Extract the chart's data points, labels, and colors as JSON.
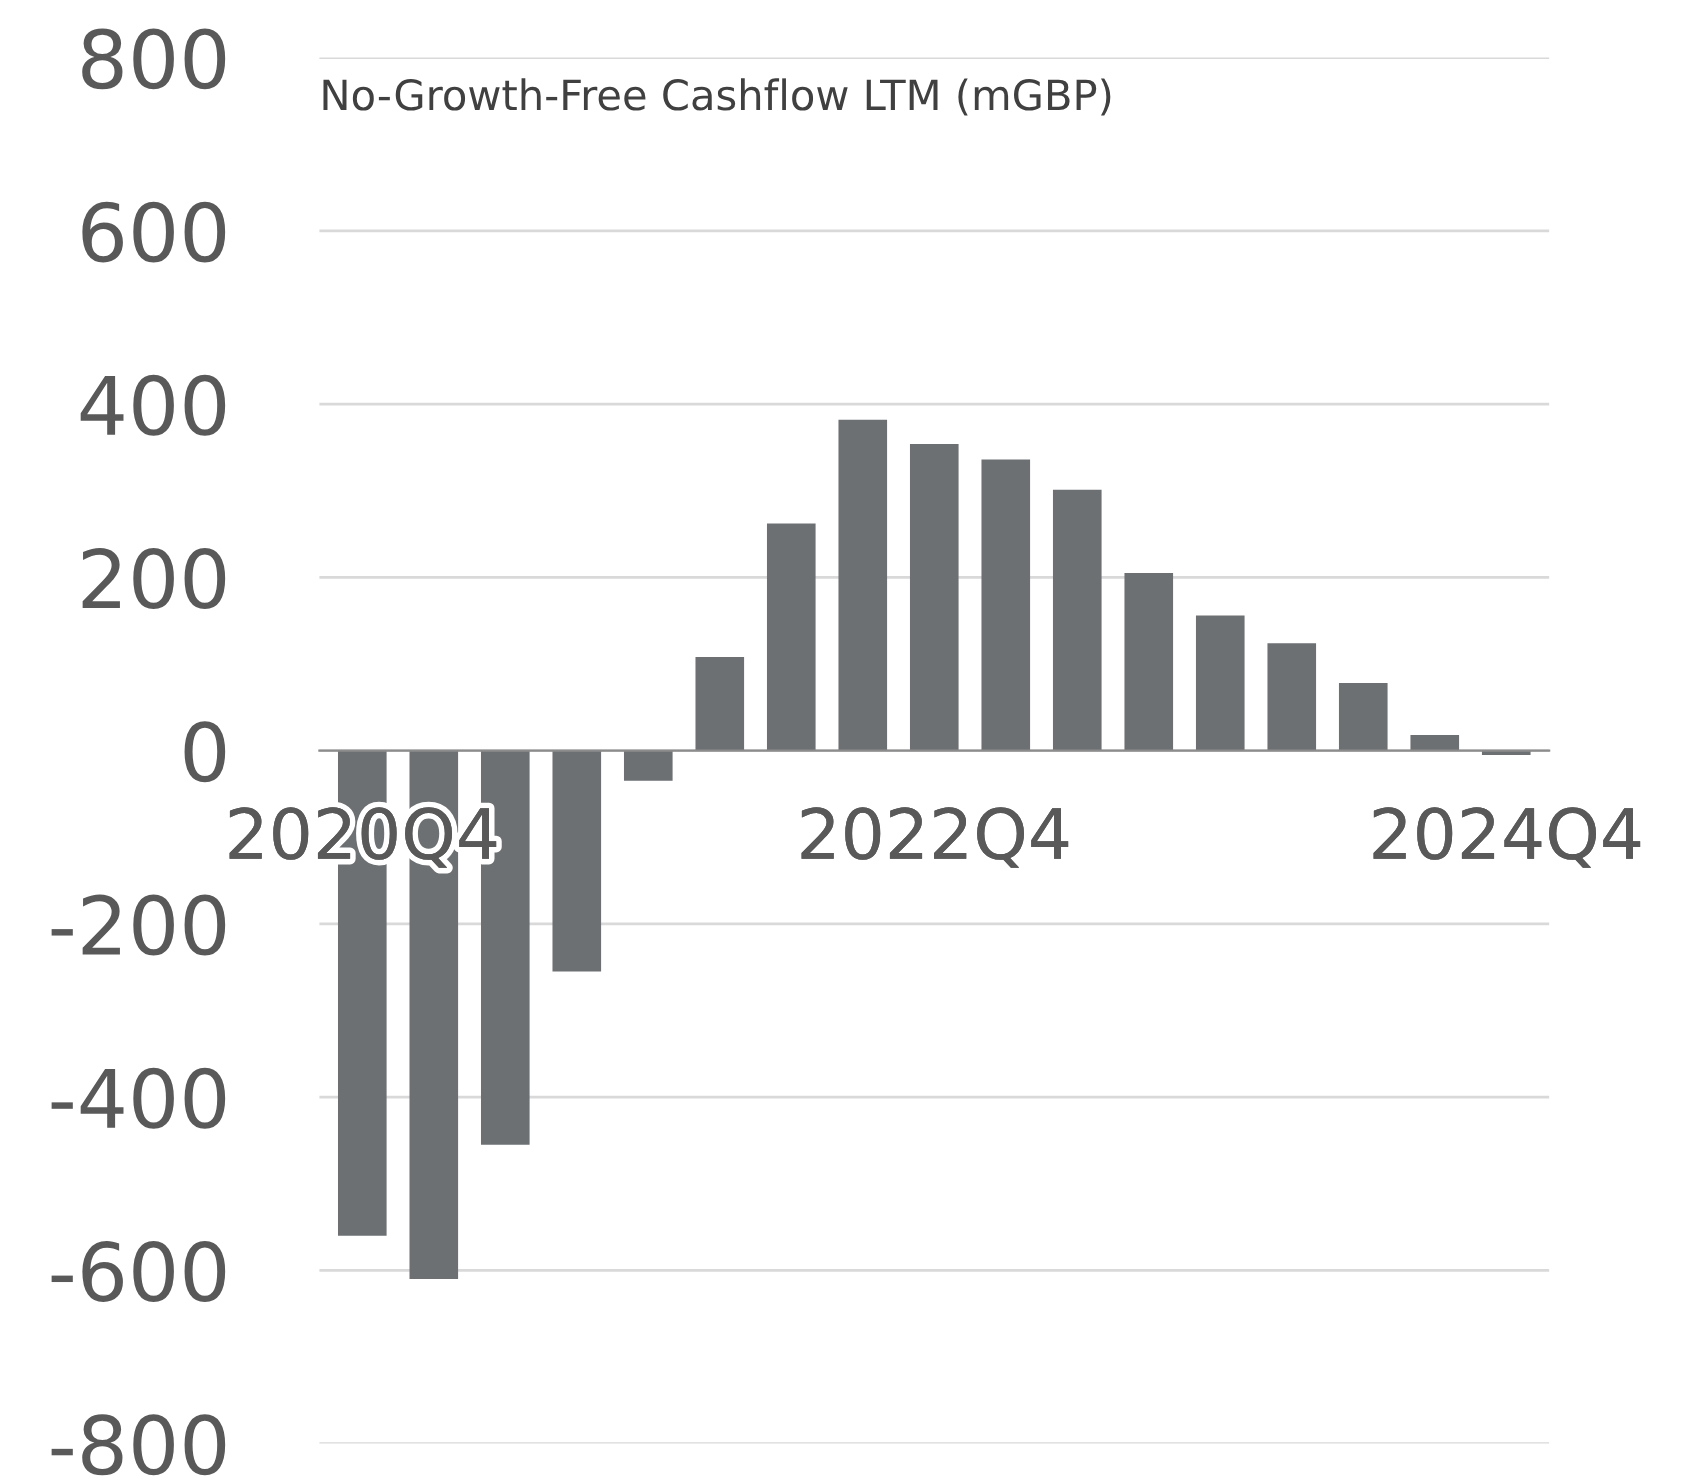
{
  "chart_data": {
    "type": "bar",
    "title": "No-Growth-Free Cashflow LTM (mGBP)",
    "categories": [
      "2020Q4",
      null,
      null,
      null,
      null,
      null,
      null,
      null,
      "2022Q4",
      null,
      null,
      null,
      null,
      null,
      null,
      null,
      "2024Q4"
    ],
    "values": [
      -560,
      -610,
      -455,
      -255,
      -35,
      108,
      262,
      382,
      354,
      336,
      301,
      205,
      156,
      124,
      78,
      18,
      -5
    ],
    "color": "#6d7073",
    "ylim": [
      -800,
      800
    ],
    "yticks": [
      -800,
      -600,
      -400,
      -200,
      0,
      200,
      400,
      600,
      800
    ],
    "grid": "y",
    "legend": false
  }
}
